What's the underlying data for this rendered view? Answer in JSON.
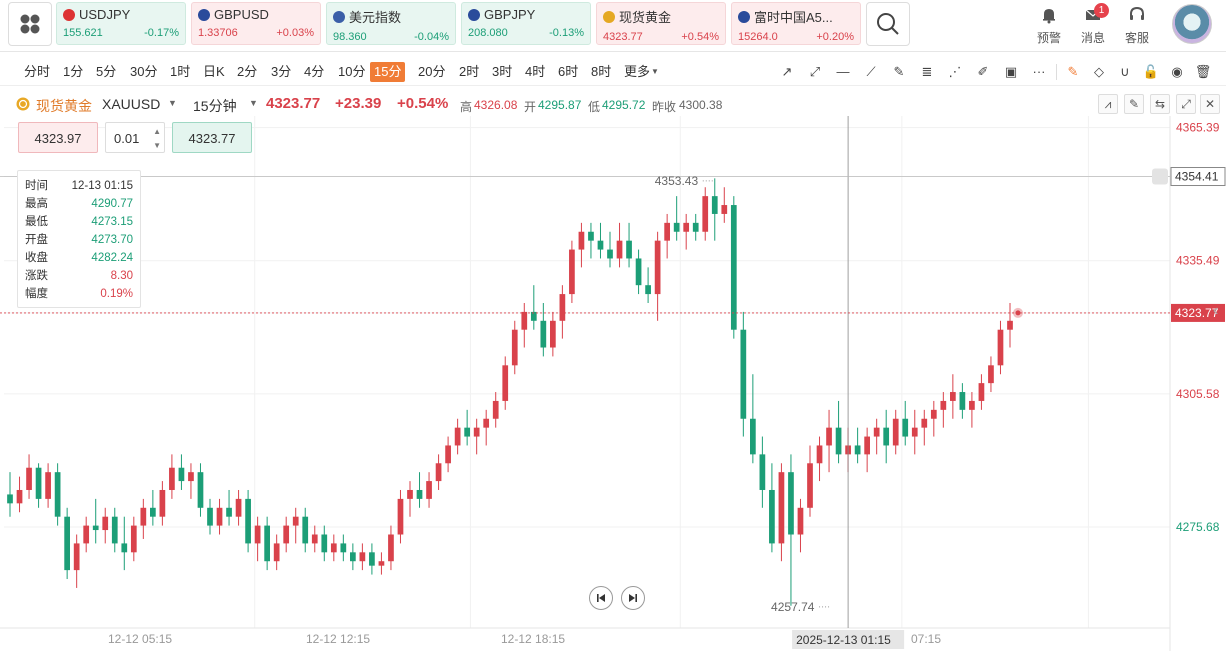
{
  "symbols": [
    {
      "name": "USDJPY",
      "price": "155.621",
      "change": "-0.17%",
      "dir": "down",
      "flag": "#d33"
    },
    {
      "name": "GBPUSD",
      "price": "1.33706",
      "change": "+0.03%",
      "dir": "up",
      "flag": "#2a4b9b"
    },
    {
      "name": "美元指数",
      "price": "98.360",
      "change": "-0.04%",
      "dir": "down",
      "flag": "#3b5fa8"
    },
    {
      "name": "GBPJPY",
      "price": "208.080",
      "change": "-0.13%",
      "dir": "down",
      "flag": "#2a4b9b"
    },
    {
      "name": "现货黄金",
      "price": "4323.77",
      "change": "+0.54%",
      "dir": "up",
      "flag": "#e5a823"
    },
    {
      "name": "富时中国A5...",
      "price": "15264.0",
      "change": "+0.20%",
      "dir": "up",
      "flag": "#2a4b9b"
    }
  ],
  "header": {
    "alert": "预警",
    "messages": "消息",
    "service": "客服",
    "badge": "1"
  },
  "periods": [
    "分时",
    "1分",
    "5分",
    "30分",
    "1时",
    "日K",
    "2分",
    "3分",
    "4分",
    "10分",
    "15分",
    "20分",
    "2时",
    "3时",
    "4时",
    "6时",
    "8时",
    "更多"
  ],
  "active_period": "15分",
  "infobar": {
    "name": "现货黄金",
    "code": "XAUUSD",
    "interval": "15分钟",
    "price": "4323.77",
    "change": "+23.39",
    "pct": "+0.54%",
    "high_label": "高",
    "high": "4326.08",
    "open_label": "开",
    "open": "4295.87",
    "low_label": "低",
    "low": "4295.72",
    "prev_label": "昨收",
    "prev": "4300.38"
  },
  "trade": {
    "ask": "4323.97",
    "lot": "0.01",
    "bid": "4323.77"
  },
  "ohlc": {
    "time_label": "时间",
    "time": "12-13 01:15",
    "high_label": "最高",
    "high": "4290.77",
    "low_label": "最低",
    "low": "4273.15",
    "open_label": "开盘",
    "open": "4273.70",
    "close_label": "收盘",
    "close": "4282.24",
    "chg_label": "涨跌",
    "chg": "8.30",
    "amp_label": "幅度",
    "amp": "0.19%"
  },
  "colors": {
    "up": "#d9424b",
    "down": "#1c9e77",
    "active": "#f07c36"
  },
  "chart_data": {
    "type": "candlestick",
    "ylim": [
      4253,
      4368
    ],
    "y_ticks": [
      "4365.39",
      "4354.41",
      "4335.49",
      "4323.77",
      "4305.58",
      "4275.68"
    ],
    "x_ticks": [
      "12-12 05:15",
      "12-12 12:15",
      "12-12 18:15",
      "07:15"
    ],
    "crosshair_x": "2025-12-13 01:15",
    "crosshair_price": "4354.41",
    "last_price": "4323.77",
    "max_label": "4353.43",
    "min_label": "4257.74",
    "ohlc": [
      [
        4283,
        4288,
        4278,
        4281
      ],
      [
        4281,
        4287,
        4279,
        4284
      ],
      [
        4284,
        4292,
        4282,
        4289
      ],
      [
        4289,
        4290,
        4280,
        4282
      ],
      [
        4282,
        4290,
        4280,
        4288
      ],
      [
        4288,
        4290,
        4276,
        4278
      ],
      [
        4278,
        4280,
        4264,
        4266
      ],
      [
        4266,
        4274,
        4262,
        4272
      ],
      [
        4272,
        4278,
        4270,
        4276
      ],
      [
        4276,
        4282,
        4272,
        4275
      ],
      [
        4275,
        4280,
        4272,
        4278
      ],
      [
        4278,
        4280,
        4270,
        4272
      ],
      [
        4272,
        4278,
        4266,
        4270
      ],
      [
        4270,
        4278,
        4268,
        4276
      ],
      [
        4276,
        4282,
        4273,
        4280
      ],
      [
        4280,
        4284,
        4276,
        4278
      ],
      [
        4278,
        4286,
        4276,
        4284
      ],
      [
        4284,
        4292,
        4282,
        4289
      ],
      [
        4289,
        4292,
        4284,
        4286
      ],
      [
        4286,
        4290,
        4282,
        4288
      ],
      [
        4288,
        4290,
        4278,
        4280
      ],
      [
        4280,
        4282,
        4274,
        4276
      ],
      [
        4276,
        4282,
        4274,
        4280
      ],
      [
        4280,
        4284,
        4276,
        4278
      ],
      [
        4278,
        4284,
        4276,
        4282
      ],
      [
        4282,
        4284,
        4270,
        4272
      ],
      [
        4272,
        4278,
        4268,
        4276
      ],
      [
        4276,
        4278,
        4266,
        4268
      ],
      [
        4268,
        4274,
        4266,
        4272
      ],
      [
        4272,
        4278,
        4270,
        4276
      ],
      [
        4276,
        4280,
        4272,
        4278
      ],
      [
        4278,
        4280,
        4270,
        4272
      ],
      [
        4272,
        4276,
        4270,
        4274
      ],
      [
        4274,
        4276,
        4268,
        4270
      ],
      [
        4270,
        4274,
        4268,
        4272
      ],
      [
        4272,
        4274,
        4268,
        4270
      ],
      [
        4270,
        4272,
        4266,
        4268
      ],
      [
        4268,
        4272,
        4266,
        4270
      ],
      [
        4270,
        4272,
        4265,
        4267
      ],
      [
        4267,
        4270,
        4265,
        4268
      ],
      [
        4268,
        4276,
        4266,
        4274
      ],
      [
        4274,
        4284,
        4272,
        4282
      ],
      [
        4282,
        4286,
        4278,
        4284
      ],
      [
        4284,
        4288,
        4280,
        4282
      ],
      [
        4282,
        4288,
        4280,
        4286
      ],
      [
        4286,
        4292,
        4284,
        4290
      ],
      [
        4290,
        4296,
        4288,
        4294
      ],
      [
        4294,
        4300,
        4292,
        4298
      ],
      [
        4298,
        4302,
        4294,
        4296
      ],
      [
        4296,
        4300,
        4292,
        4298
      ],
      [
        4298,
        4302,
        4294,
        4300
      ],
      [
        4300,
        4306,
        4298,
        4304
      ],
      [
        4304,
        4314,
        4302,
        4312
      ],
      [
        4312,
        4322,
        4310,
        4320
      ],
      [
        4320,
        4326,
        4316,
        4324
      ],
      [
        4324,
        4330,
        4320,
        4322
      ],
      [
        4322,
        4326,
        4314,
        4316
      ],
      [
        4316,
        4324,
        4314,
        4322
      ],
      [
        4322,
        4330,
        4318,
        4328
      ],
      [
        4328,
        4340,
        4326,
        4338
      ],
      [
        4338,
        4344,
        4334,
        4342
      ],
      [
        4342,
        4344,
        4336,
        4340
      ],
      [
        4340,
        4344,
        4336,
        4338
      ],
      [
        4338,
        4342,
        4334,
        4336
      ],
      [
        4336,
        4344,
        4334,
        4340
      ],
      [
        4340,
        4344,
        4334,
        4336
      ],
      [
        4336,
        4338,
        4328,
        4330
      ],
      [
        4330,
        4334,
        4326,
        4328
      ],
      [
        4328,
        4342,
        4322,
        4340
      ],
      [
        4340,
        4346,
        4336,
        4344
      ],
      [
        4344,
        4350,
        4340,
        4342
      ],
      [
        4342,
        4346,
        4338,
        4344
      ],
      [
        4344,
        4346,
        4340,
        4342
      ],
      [
        4342,
        4352,
        4340,
        4350
      ],
      [
        4350,
        4354,
        4340,
        4346
      ],
      [
        4346,
        4352,
        4344,
        4348
      ],
      [
        4348,
        4350,
        4318,
        4320
      ],
      [
        4320,
        4324,
        4296,
        4300
      ],
      [
        4300,
        4310,
        4290,
        4292
      ],
      [
        4292,
        4296,
        4280,
        4284
      ],
      [
        4284,
        4290,
        4270,
        4272
      ],
      [
        4272,
        4290,
        4268,
        4288
      ],
      [
        4288,
        4292,
        4258,
        4274
      ],
      [
        4274,
        4282,
        4270,
        4280
      ],
      [
        4280,
        4294,
        4278,
        4290
      ],
      [
        4290,
        4296,
        4286,
        4294
      ],
      [
        4294,
        4302,
        4288,
        4298
      ],
      [
        4298,
        4304,
        4290,
        4292
      ],
      [
        4292,
        4298,
        4288,
        4294
      ],
      [
        4294,
        4298,
        4290,
        4292
      ],
      [
        4292,
        4298,
        4288,
        4296
      ],
      [
        4296,
        4300,
        4292,
        4298
      ],
      [
        4298,
        4302,
        4290,
        4294
      ],
      [
        4294,
        4302,
        4292,
        4300
      ],
      [
        4300,
        4304,
        4294,
        4296
      ],
      [
        4296,
        4302,
        4292,
        4298
      ],
      [
        4298,
        4302,
        4294,
        4300
      ],
      [
        4300,
        4304,
        4296,
        4302
      ],
      [
        4302,
        4306,
        4298,
        4304
      ],
      [
        4304,
        4310,
        4300,
        4306
      ],
      [
        4306,
        4308,
        4300,
        4302
      ],
      [
        4302,
        4306,
        4298,
        4304
      ],
      [
        4304,
        4310,
        4302,
        4308
      ],
      [
        4308,
        4314,
        4306,
        4312
      ],
      [
        4312,
        4322,
        4310,
        4320
      ],
      [
        4320,
        4326,
        4316,
        4322
      ]
    ]
  }
}
